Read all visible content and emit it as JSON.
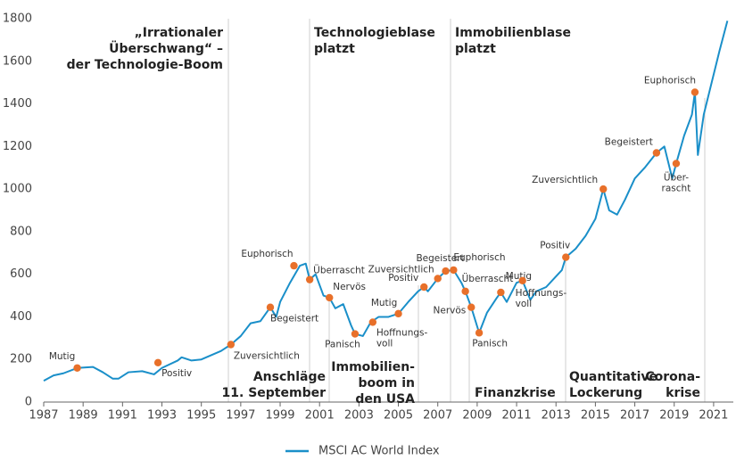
{
  "chart_data": {
    "type": "line",
    "xlim": [
      1987,
      2022
    ],
    "ylim": [
      0,
      1800
    ],
    "xticks": [
      1987,
      1989,
      1991,
      1993,
      1995,
      1997,
      1999,
      2001,
      2003,
      2005,
      2007,
      2009,
      2011,
      2013,
      2015,
      2017,
      2019,
      2021
    ],
    "yticks": [
      0,
      200,
      400,
      600,
      800,
      1000,
      1200,
      1400,
      1600,
      1800
    ],
    "grid": false,
    "legend": "bottom",
    "series": [
      {
        "name": "MSCI AC World Index",
        "color": "#1a8fc9",
        "x": [
          1987.0,
          1987.5,
          1988.0,
          1988.7,
          1989.5,
          1990.0,
          1990.5,
          1990.8,
          1991.3,
          1992.0,
          1992.6,
          1993.0,
          1993.8,
          1994.0,
          1994.5,
          1995.0,
          1995.5,
          1996.0,
          1996.5,
          1997.0,
          1997.5,
          1998.0,
          1998.5,
          1998.8,
          1999.0,
          1999.5,
          2000.0,
          2000.3,
          2000.5,
          2000.8,
          2001.2,
          2001.5,
          2001.8,
          2002.2,
          2002.6,
          2002.8,
          2003.2,
          2003.6,
          2004.0,
          2004.5,
          2005.0,
          2005.5,
          2006.0,
          2006.3,
          2006.5,
          2007.0,
          2007.4,
          2007.8,
          2008.2,
          2008.4,
          2008.7,
          2009.1,
          2009.5,
          2010.0,
          2010.2,
          2010.5,
          2011.0,
          2011.3,
          2011.7,
          2012.0,
          2012.5,
          2013.0,
          2013.3,
          2013.5,
          2014.0,
          2014.5,
          2015.0,
          2015.4,
          2015.7,
          2016.1,
          2016.5,
          2017.0,
          2017.5,
          2018.1,
          2018.5,
          2018.9,
          2019.1,
          2019.5,
          2019.9,
          2020.05,
          2020.2,
          2020.5,
          2020.9,
          2021.3,
          2021.7
        ],
        "values": [
          100,
          125,
          135,
          160,
          165,
          140,
          110,
          110,
          140,
          145,
          130,
          160,
          195,
          210,
          195,
          200,
          220,
          240,
          270,
          310,
          370,
          380,
          445,
          400,
          470,
          560,
          640,
          650,
          575,
          600,
          500,
          490,
          440,
          460,
          360,
          320,
          310,
          375,
          400,
          400,
          415,
          470,
          520,
          540,
          520,
          580,
          615,
          620,
          560,
          520,
          445,
          325,
          420,
          490,
          515,
          470,
          560,
          570,
          480,
          520,
          540,
          590,
          620,
          680,
          720,
          780,
          860,
          1000,
          900,
          880,
          950,
          1050,
          1100,
          1170,
          1200,
          1050,
          1120,
          1250,
          1350,
          1455,
          1160,
          1350,
          1500,
          1650,
          1790
        ]
      }
    ],
    "points": {
      "color": "#e8702a",
      "x": [
        1988.7,
        1992.8,
        1996.5,
        1998.5,
        1999.7,
        2000.5,
        2001.5,
        2002.8,
        2003.7,
        2005.0,
        2006.3,
        2007.0,
        2007.4,
        2007.8,
        2008.4,
        2008.7,
        2009.1,
        2010.2,
        2011.3,
        2013.5,
        2015.4,
        2018.1,
        2019.1,
        2020.05
      ],
      "values": [
        160,
        185,
        270,
        445,
        640,
        575,
        490,
        320,
        375,
        415,
        540,
        580,
        615,
        620,
        520,
        445,
        325,
        515,
        570,
        680,
        1000,
        1170,
        1120,
        1455
      ],
      "labels": [
        [
          "Mutig"
        ],
        [
          "Positiv"
        ],
        [
          "Zuversichtlich"
        ],
        [
          "Begeistert"
        ],
        [
          "Euphorisch"
        ],
        [
          "Überrascht"
        ],
        [
          "Nervös"
        ],
        [
          "Panisch"
        ],
        [
          "Hoffnungs-",
          "voll"
        ],
        [
          "Mutig"
        ],
        [
          "Positiv"
        ],
        [
          "Zuversichtlich"
        ],
        [
          "Begeistert"
        ],
        [
          "Euphorisch"
        ],
        [
          "Überrascht"
        ],
        [
          "Nervös"
        ],
        [
          "Panisch"
        ],
        [
          "Mutig"
        ],
        [
          "Hoffnungs-",
          "voll"
        ],
        [
          "Positiv"
        ],
        [
          "Zuversichtlich"
        ],
        [
          "Begeistert"
        ],
        [
          "Über-",
          "rascht"
        ],
        [
          "Euphorisch"
        ]
      ]
    },
    "events": [
      [
        "„Irrationaler",
        "Überschwang“ –",
        "der Technologie-Boom"
      ],
      [
        "Technologieblase",
        "platzt"
      ],
      [
        "Immobilienblase",
        "platzt"
      ],
      [
        "Anschläge",
        "11. September"
      ],
      [
        "Immobilien-",
        "boom in",
        "den USA"
      ],
      [
        "Finanzkrise"
      ],
      [
        "Quantitative",
        "Lockerung"
      ],
      [
        "Corona-",
        "krise"
      ]
    ]
  }
}
